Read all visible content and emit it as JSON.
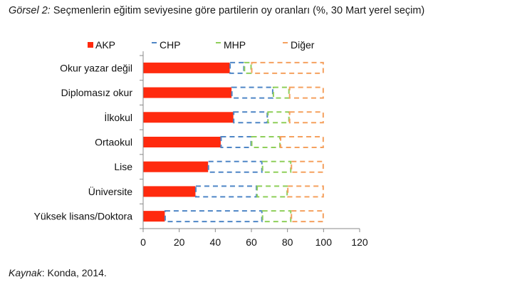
{
  "caption": {
    "label": "Görsel  2:",
    "text": " Seçmenlerin eğitim seviyesine göre partilerin oy oranları (%, 30 Mart yerel seçim)"
  },
  "source": {
    "label": "Kaynak",
    "text": ": Konda, 2014."
  },
  "colors": {
    "AKP": "#ff2a0e",
    "CHP": "#4f86c6",
    "MHP": "#8fcf5a",
    "Diğer": "#f5a15f"
  },
  "chart_data": {
    "type": "bar",
    "orientation": "horizontal",
    "stacked": true,
    "categories": [
      "Okur yazar değil",
      "Diplomasız okur",
      "İlkokul",
      "Ortaokul",
      "Lise",
      "Üniversite",
      "Yüksek lisans/Doktora"
    ],
    "series": [
      {
        "name": "AKP",
        "values": [
          48,
          49,
          50,
          43,
          36,
          29,
          12
        ]
      },
      {
        "name": "CHP",
        "values": [
          8,
          23,
          19,
          17,
          30,
          34,
          54
        ]
      },
      {
        "name": "MHP",
        "values": [
          4,
          9,
          12,
          16,
          16,
          17,
          16
        ]
      },
      {
        "name": "Diğer",
        "values": [
          40,
          19,
          19,
          24,
          18,
          20,
          18
        ]
      }
    ],
    "xlim": [
      0,
      120
    ],
    "xticks": [
      0,
      20,
      40,
      60,
      80,
      100,
      120
    ],
    "grid": false,
    "legend": "top"
  }
}
